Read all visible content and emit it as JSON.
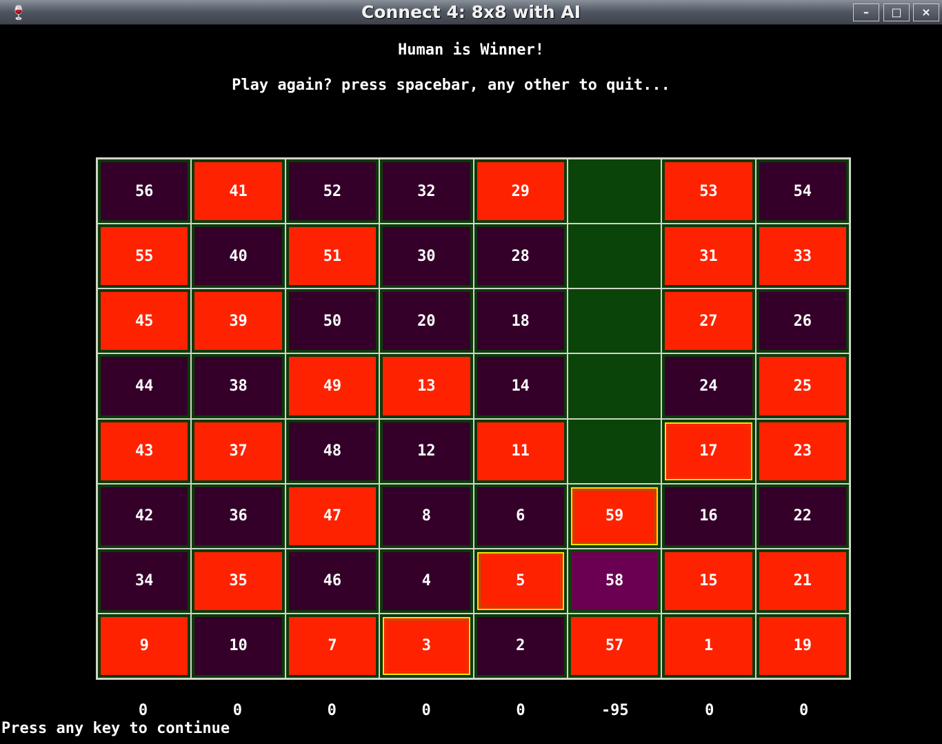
{
  "window": {
    "title": "Connect 4: 8x8 with AI",
    "app_icon": "wine-glass-icon",
    "minimize": "–",
    "maximize": "□",
    "close": "×"
  },
  "messages": {
    "winner": "Human is Winner!",
    "play_again": "Play again? press spacebar, any other to quit..."
  },
  "board": {
    "rows": 8,
    "cols": 8,
    "highlight_column": 5,
    "colors": {
      "human": "#ff2200",
      "ai": "#34002a",
      "last_move": "#6b0052",
      "empty": "#0b4408",
      "win_border": "#f3e600"
    },
    "cells": [
      [
        {
          "n": "56",
          "p": "ai"
        },
        {
          "n": "41",
          "p": "human"
        },
        {
          "n": "52",
          "p": "ai"
        },
        {
          "n": "32",
          "p": "ai"
        },
        {
          "n": "29",
          "p": "human"
        },
        {
          "n": "",
          "p": "empty"
        },
        {
          "n": "53",
          "p": "human"
        },
        {
          "n": "54",
          "p": "ai"
        }
      ],
      [
        {
          "n": "55",
          "p": "human"
        },
        {
          "n": "40",
          "p": "ai"
        },
        {
          "n": "51",
          "p": "human"
        },
        {
          "n": "30",
          "p": "ai"
        },
        {
          "n": "28",
          "p": "ai"
        },
        {
          "n": "",
          "p": "empty"
        },
        {
          "n": "31",
          "p": "human"
        },
        {
          "n": "33",
          "p": "human"
        }
      ],
      [
        {
          "n": "45",
          "p": "human"
        },
        {
          "n": "39",
          "p": "human"
        },
        {
          "n": "50",
          "p": "ai"
        },
        {
          "n": "20",
          "p": "ai"
        },
        {
          "n": "18",
          "p": "ai"
        },
        {
          "n": "",
          "p": "empty"
        },
        {
          "n": "27",
          "p": "human"
        },
        {
          "n": "26",
          "p": "ai"
        }
      ],
      [
        {
          "n": "44",
          "p": "ai"
        },
        {
          "n": "38",
          "p": "ai"
        },
        {
          "n": "49",
          "p": "human"
        },
        {
          "n": "13",
          "p": "human"
        },
        {
          "n": "14",
          "p": "ai"
        },
        {
          "n": "",
          "p": "empty"
        },
        {
          "n": "24",
          "p": "ai"
        },
        {
          "n": "25",
          "p": "human"
        }
      ],
      [
        {
          "n": "43",
          "p": "human"
        },
        {
          "n": "37",
          "p": "human"
        },
        {
          "n": "48",
          "p": "ai"
        },
        {
          "n": "12",
          "p": "ai"
        },
        {
          "n": "11",
          "p": "human"
        },
        {
          "n": "",
          "p": "empty"
        },
        {
          "n": "17",
          "p": "human",
          "win": true
        },
        {
          "n": "23",
          "p": "human"
        }
      ],
      [
        {
          "n": "42",
          "p": "ai"
        },
        {
          "n": "36",
          "p": "ai"
        },
        {
          "n": "47",
          "p": "human"
        },
        {
          "n": "8",
          "p": "ai"
        },
        {
          "n": "6",
          "p": "ai"
        },
        {
          "n": "59",
          "p": "human",
          "win": true
        },
        {
          "n": "16",
          "p": "ai"
        },
        {
          "n": "22",
          "p": "ai"
        }
      ],
      [
        {
          "n": "34",
          "p": "ai"
        },
        {
          "n": "35",
          "p": "human"
        },
        {
          "n": "46",
          "p": "ai"
        },
        {
          "n": "4",
          "p": "ai"
        },
        {
          "n": "5",
          "p": "human",
          "win": true
        },
        {
          "n": "58",
          "p": "last"
        },
        {
          "n": "15",
          "p": "human"
        },
        {
          "n": "21",
          "p": "human"
        }
      ],
      [
        {
          "n": "9",
          "p": "human"
        },
        {
          "n": "10",
          "p": "ai"
        },
        {
          "n": "7",
          "p": "human"
        },
        {
          "n": "3",
          "p": "human",
          "win": true
        },
        {
          "n": "2",
          "p": "ai"
        },
        {
          "n": "57",
          "p": "human"
        },
        {
          "n": "1",
          "p": "human"
        },
        {
          "n": "19",
          "p": "human"
        }
      ]
    ]
  },
  "scores": [
    "0",
    "0",
    "0",
    "0",
    "0",
    "-95",
    "0",
    "0"
  ],
  "prompt": "Press any key to continue"
}
